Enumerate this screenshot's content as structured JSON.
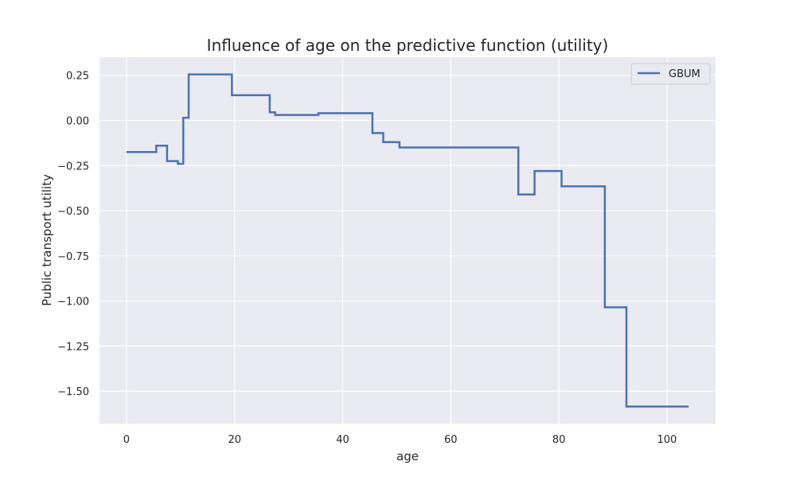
{
  "chart_data": {
    "type": "line",
    "title": "Influence of age on the predictive function (utility)",
    "xlabel": "age",
    "ylabel": "Public transport utility",
    "xlim": [
      -5,
      109
    ],
    "ylim": [
      -1.68,
      0.35
    ],
    "x_ticks": [
      0,
      20,
      40,
      60,
      80,
      100
    ],
    "x_tick_labels": [
      "0",
      "20",
      "40",
      "60",
      "80",
      "100"
    ],
    "y_ticks": [
      0.25,
      0.0,
      -0.25,
      -0.5,
      -0.75,
      -1.0,
      -1.25,
      -1.5
    ],
    "y_tick_labels": [
      "0.25",
      "0.00",
      "−0.25",
      "−0.50",
      "−0.75",
      "−1.00",
      "−1.25",
      "−1.50"
    ],
    "grid": true,
    "legend_position": "top-right",
    "step": "post",
    "series": [
      {
        "name": "GBUM",
        "color": "#4c72b0",
        "x": [
          0,
          5.5,
          7.5,
          9.5,
          10.5,
          11.5,
          19.5,
          26.5,
          27.5,
          35.5,
          45.5,
          47.5,
          50.5,
          72.5,
          75.5,
          80.5,
          88.5,
          92.5,
          104
        ],
        "y": [
          -0.175,
          -0.14,
          -0.225,
          -0.24,
          0.015,
          0.255,
          0.14,
          0.045,
          0.03,
          0.04,
          -0.07,
          -0.12,
          -0.15,
          -0.41,
          -0.28,
          -0.365,
          -1.035,
          -1.585,
          -1.585
        ]
      }
    ]
  }
}
